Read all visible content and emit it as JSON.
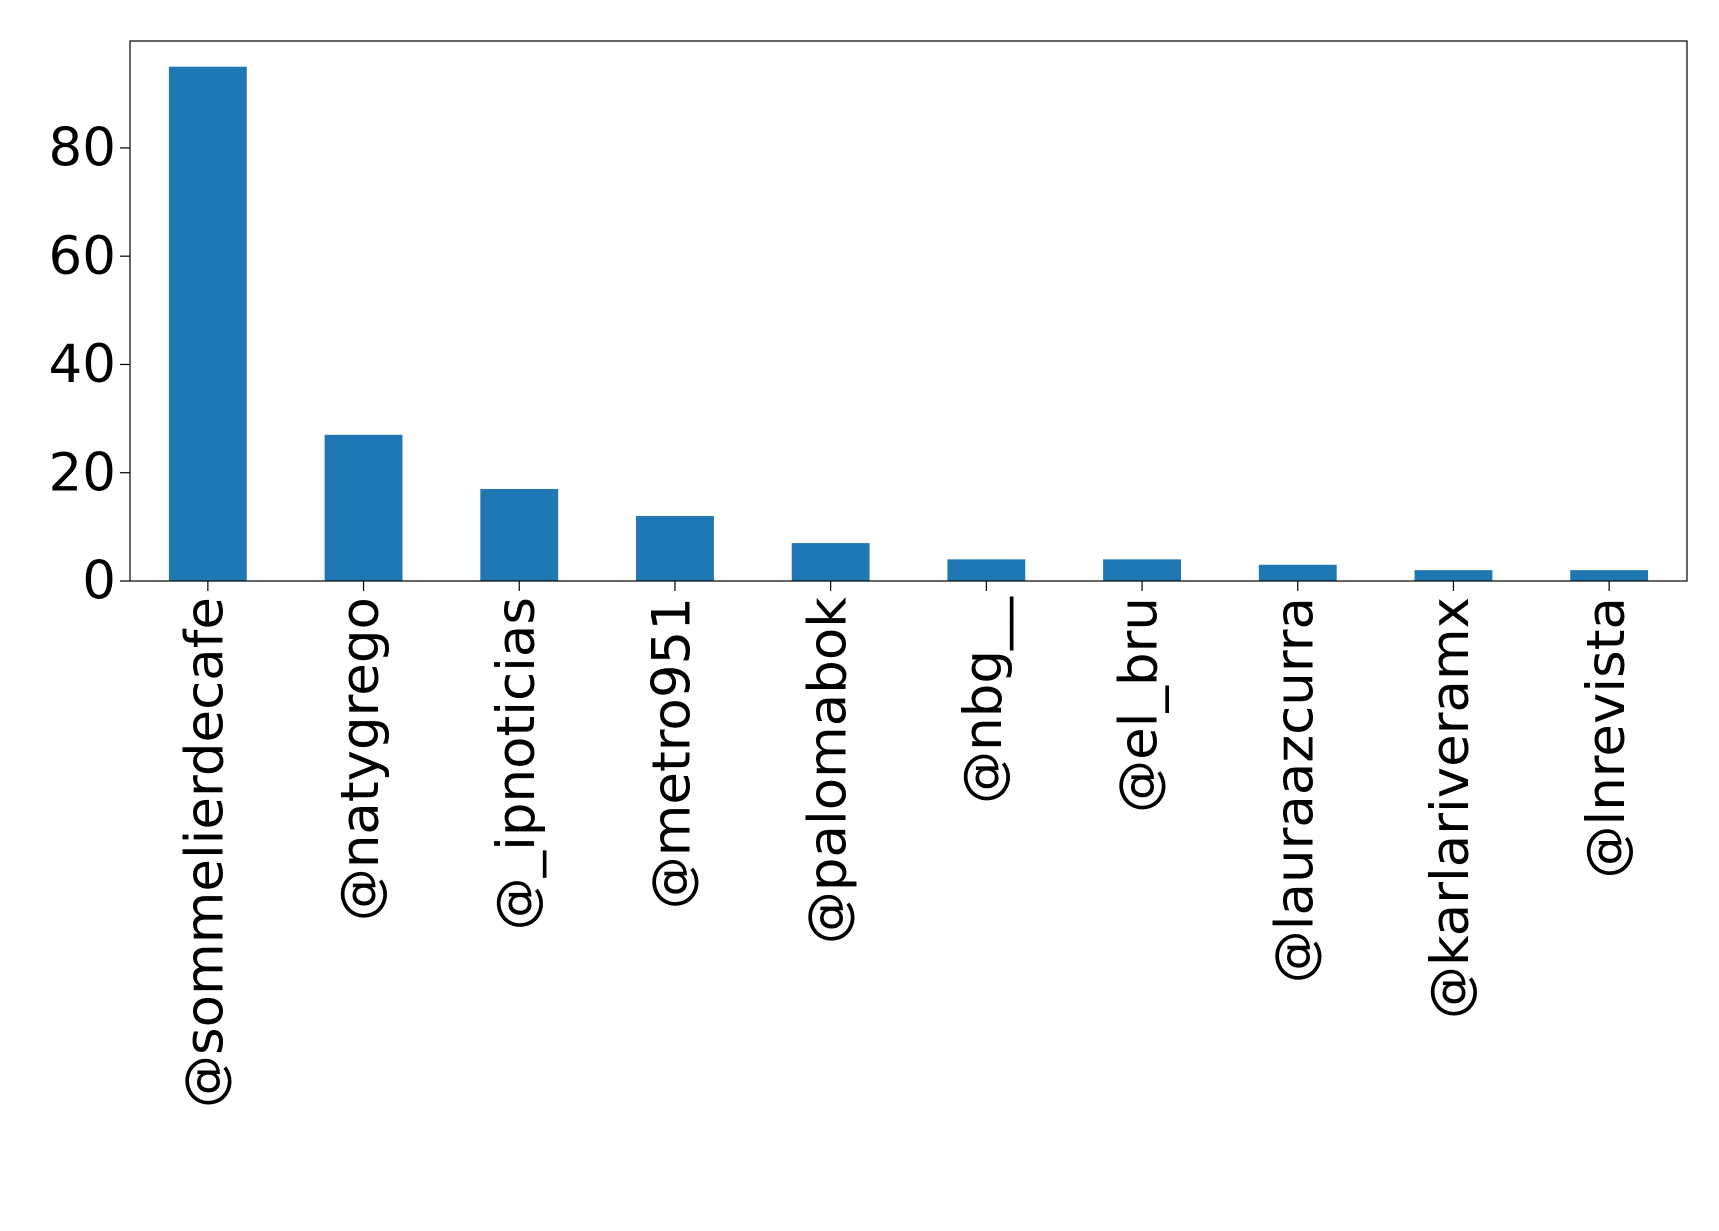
{
  "chart_data": {
    "type": "bar",
    "categories": [
      "@sommelierdecafe",
      "@natygrego",
      "@_ipnoticias",
      "@metro951",
      "@palomabok",
      "@nbg__",
      "@el_bru",
      "@lauraazcurra",
      "@karlariveramx",
      "@lnrevista"
    ],
    "values": [
      95,
      27,
      17,
      12,
      7,
      4,
      4,
      3,
      2,
      2
    ],
    "color": "#1f77b4",
    "ylim": [
      0,
      99.75
    ],
    "yticks": [
      0,
      20,
      40,
      60,
      80
    ],
    "grid": false
  }
}
